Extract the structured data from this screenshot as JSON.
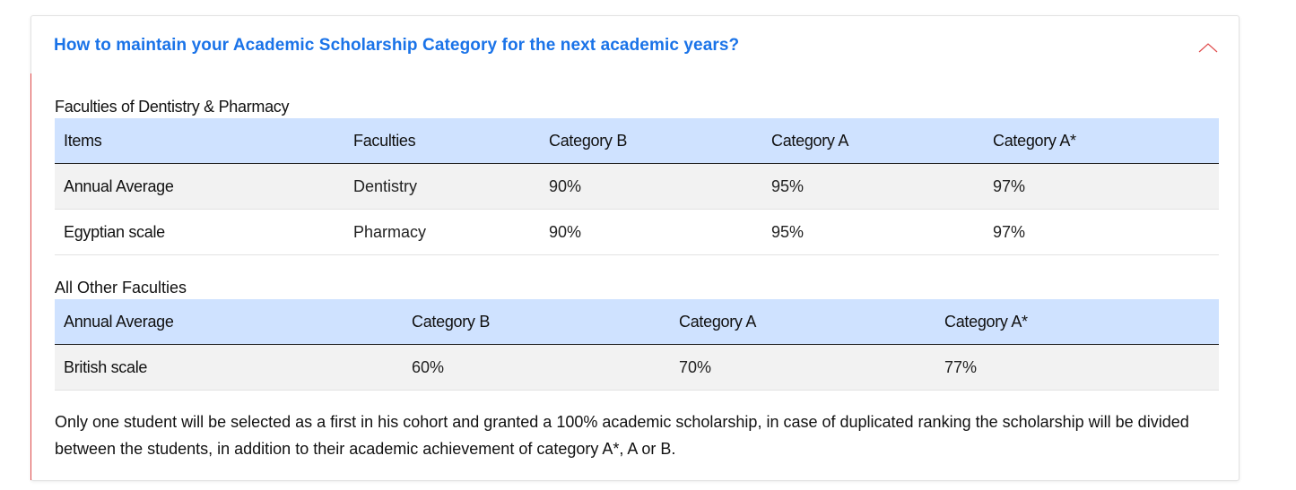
{
  "accordion": {
    "title": "How to maintain your Academic Scholarship Category for the next academic years?",
    "expanded": true,
    "toggle_icon": "chevron-up-icon",
    "accent_color": "#1a73e8",
    "marker_color": "#e04b4b"
  },
  "section1": {
    "label": "Faculties of Dentistry & Pharmacy",
    "headers": [
      "Items",
      "Faculties",
      "Category B",
      "Category A",
      "Category A*"
    ],
    "rows": [
      [
        "Annual Average",
        "Dentistry",
        "90%",
        "95%",
        "97%"
      ],
      [
        "Egyptian scale",
        "Pharmacy",
        "90%",
        "95%",
        "97%"
      ]
    ]
  },
  "section2": {
    "label": "All Other Faculties",
    "headers": [
      "Annual Average",
      "Category B",
      "Category A",
      "Category A*"
    ],
    "rows": [
      [
        "British scale",
        "60%",
        "70%",
        "77%"
      ]
    ]
  },
  "note": "Only one student will be selected as a first in his cohort and granted a 100% academic scholarship, in case of duplicated ranking the scholarship will be divided between the students, in addition to their academic achievement of category A*, A or B.",
  "colors": {
    "header_row_bg": "#cfe2ff",
    "striped_row_bg": "#f2f2f2"
  }
}
